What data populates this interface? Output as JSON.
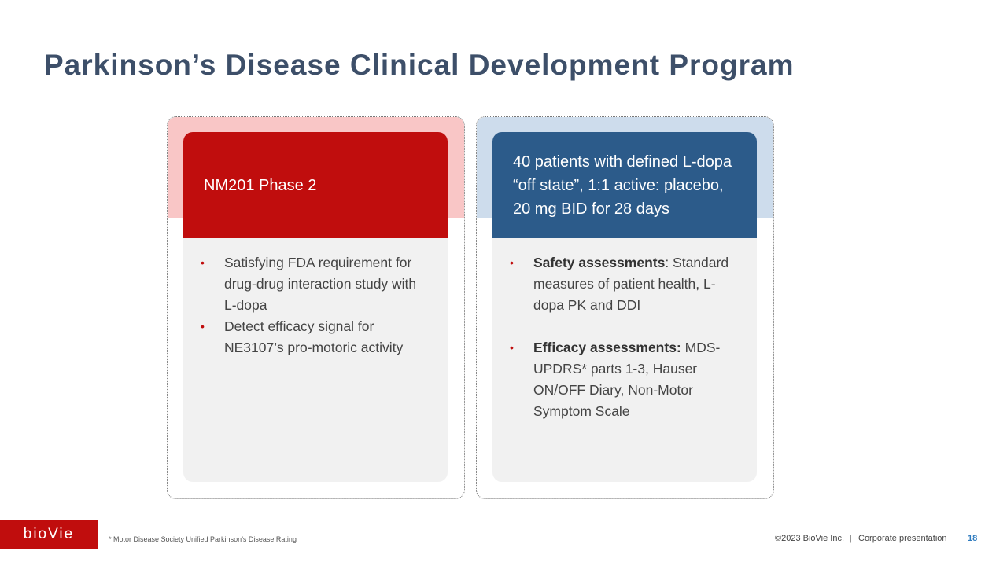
{
  "title": "Parkinson’s Disease Clinical Development Program",
  "cards": [
    {
      "header": "NM201 Phase 2",
      "bullets": [
        {
          "text": "Satisfying FDA requirement for drug-drug interaction study with L-dopa"
        },
        {
          "text": "Detect efficacy signal for NE3107’s pro-motoric activity"
        }
      ]
    },
    {
      "header": "40 patients with defined L-dopa “off state”, 1:1 active: placebo, 20 mg BID for 28 days",
      "bullets": [
        {
          "lead": "Safety assessments",
          "text": ": Standard measures of patient health, L-dopa PK and DDI"
        },
        {
          "lead": "Efficacy assessments:",
          "text": "MDS-UPDRS* parts 1-3, Hauser ON/OFF Diary, Non-Motor Symptom Scale"
        }
      ]
    }
  ],
  "footer": {
    "logo": "bioVie",
    "footnote": "* Motor Disease Society Unified Parkinson’s Disease Rating",
    "copyright": "©2023 BioVie Inc.",
    "section": "Corporate presentation",
    "page": "18"
  }
}
